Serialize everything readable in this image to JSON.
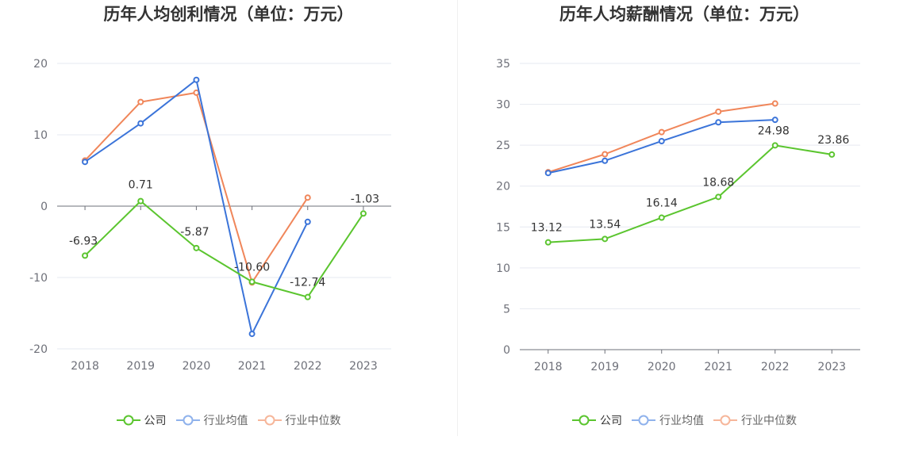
{
  "charts": [
    {
      "title": "历年人均创利情况（单位：万元）",
      "legend": [
        "公司",
        "行业均值",
        "行业中位数"
      ]
    },
    {
      "title": "历年人均薪酬情况（单位：万元）",
      "legend": [
        "公司",
        "行业均值",
        "行业中位数"
      ]
    }
  ],
  "chart_data": [
    {
      "type": "line",
      "title": "历年人均创利情况（单位：万元）",
      "xlabel": "",
      "ylabel": "",
      "categories": [
        "2018",
        "2019",
        "2020",
        "2021",
        "2022",
        "2023"
      ],
      "ylim": [
        -20,
        20
      ],
      "yticks": [
        -20,
        -10,
        0,
        10,
        20
      ],
      "grid": true,
      "legend_position": "bottom",
      "series": [
        {
          "name": "公司",
          "color": "#5bc52f",
          "values": [
            -6.93,
            0.71,
            -5.87,
            -10.6,
            -12.74,
            -1.03
          ],
          "labels": [
            "-6.93",
            "0.71",
            "-5.87",
            "-10.60",
            "-12.74",
            "-1.03"
          ]
        },
        {
          "name": "行业均值",
          "color": "#3b74d9",
          "values": [
            6.2,
            11.6,
            17.7,
            -17.9,
            -2.2,
            null
          ]
        },
        {
          "name": "行业中位数",
          "color": "#f0865a",
          "values": [
            6.4,
            14.6,
            15.9,
            -10.7,
            1.2,
            null
          ]
        }
      ]
    },
    {
      "type": "line",
      "title": "历年人均薪酬情况（单位：万元）",
      "xlabel": "",
      "ylabel": "",
      "categories": [
        "2018",
        "2019",
        "2020",
        "2021",
        "2022",
        "2023"
      ],
      "ylim": [
        0,
        35
      ],
      "yticks": [
        0,
        5,
        10,
        15,
        20,
        25,
        30,
        35
      ],
      "grid": true,
      "legend_position": "bottom",
      "series": [
        {
          "name": "公司",
          "color": "#5bc52f",
          "values": [
            13.12,
            13.54,
            16.14,
            18.68,
            24.98,
            23.86
          ],
          "labels": [
            "13.12",
            "13.54",
            "16.14",
            "18.68",
            "24.98",
            "23.86"
          ]
        },
        {
          "name": "行业均值",
          "color": "#3b74d9",
          "values": [
            21.6,
            23.1,
            25.5,
            27.8,
            28.1,
            null
          ]
        },
        {
          "name": "行业中位数",
          "color": "#f0865a",
          "values": [
            21.7,
            23.9,
            26.6,
            29.1,
            30.1,
            null
          ]
        }
      ]
    }
  ]
}
